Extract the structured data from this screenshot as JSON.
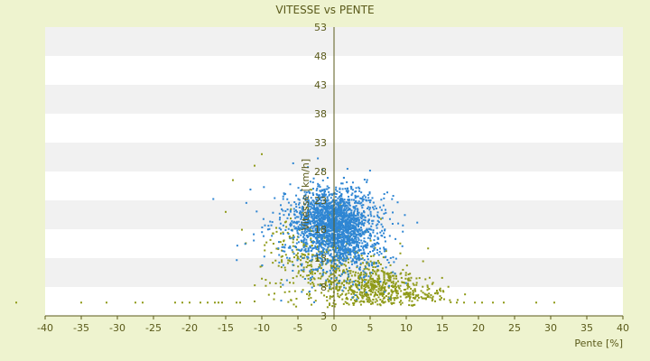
{
  "chart_data": {
    "type": "scatter",
    "title": "VITESSE vs PENTE",
    "xlabel": "Pente [%]",
    "ylabel": "Vitesse [km/h]",
    "xlim": [
      -40,
      40
    ],
    "ylim": [
      3,
      53
    ],
    "xticks": [
      -40,
      -35,
      -30,
      -25,
      -20,
      -15,
      -10,
      -5,
      0,
      5,
      10,
      15,
      20,
      25,
      30,
      35,
      40
    ],
    "yticks": [
      3,
      8,
      13,
      18,
      23,
      28,
      33,
      38,
      43,
      48,
      53
    ],
    "grid": "horizontal-bands",
    "legend": "none",
    "colors": {
      "background": "#eef3cf",
      "band_light": "#ffffff",
      "band_dark": "#f1f1f1",
      "series_blue": "#2f86d3",
      "series_olive": "#8f9a18",
      "axis": "#5a5a1a"
    },
    "series": [
      {
        "color": "#2f86d3",
        "clusters": [
          {
            "cx": 0,
            "cy": 19,
            "sx": 2.5,
            "sy": 3,
            "n": 1500
          },
          {
            "cx": 1.5,
            "cy": 16,
            "sx": 3.5,
            "sy": 3.5,
            "n": 500
          },
          {
            "cx": -3,
            "cy": 19,
            "sx": 4,
            "sy": 4,
            "n": 250
          }
        ]
      },
      {
        "color": "#8f9a18",
        "clusters": [
          {
            "cx": 6,
            "cy": 8,
            "sx": 3,
            "sy": 1.6,
            "n": 400
          },
          {
            "cx": 1,
            "cy": 10,
            "sx": 4,
            "sy": 3.5,
            "n": 300
          },
          {
            "cx": -4,
            "cy": 14,
            "sx": 3,
            "sy": 3.5,
            "n": 180
          },
          {
            "cx": 12,
            "cy": 6.5,
            "sx": 2.5,
            "sy": 0.8,
            "n": 90
          }
        ]
      }
    ],
    "outliers": [
      {
        "x": -44,
        "y": 5.3
      },
      {
        "x": -35,
        "y": 5.3
      },
      {
        "x": -31.5,
        "y": 5.3
      },
      {
        "x": -27.5,
        "y": 5.3
      },
      {
        "x": -26.5,
        "y": 5.3
      },
      {
        "x": -22,
        "y": 5.3
      },
      {
        "x": -21,
        "y": 5.3
      },
      {
        "x": -20,
        "y": 5.3
      },
      {
        "x": -18.5,
        "y": 5.3
      },
      {
        "x": -17.5,
        "y": 5.3
      },
      {
        "x": -16.5,
        "y": 5.3
      },
      {
        "x": -16,
        "y": 5.3
      },
      {
        "x": -15.5,
        "y": 5.3
      },
      {
        "x": -13.5,
        "y": 5.3
      },
      {
        "x": -13,
        "y": 5.3
      },
      {
        "x": -11,
        "y": 5.5
      },
      {
        "x": 17,
        "y": 5.3
      },
      {
        "x": 18,
        "y": 5.3
      },
      {
        "x": 19.5,
        "y": 5.3
      },
      {
        "x": 20.5,
        "y": 5.3
      },
      {
        "x": 22,
        "y": 5.3
      },
      {
        "x": 23.5,
        "y": 5.3
      },
      {
        "x": 28,
        "y": 5.3
      },
      {
        "x": 30.5,
        "y": 5.3
      },
      {
        "x": -10,
        "y": 31
      },
      {
        "x": -14,
        "y": 26.5
      },
      {
        "x": -15,
        "y": 21
      },
      {
        "x": -11,
        "y": 29
      }
    ]
  }
}
